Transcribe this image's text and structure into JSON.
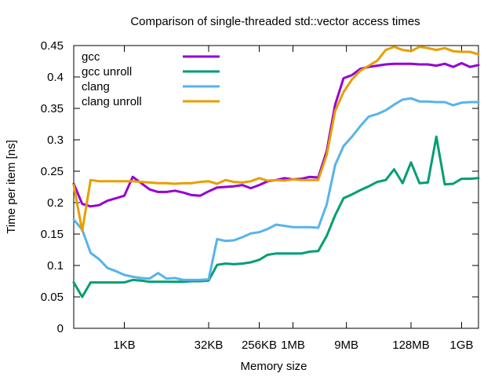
{
  "chart_data": {
    "type": "line",
    "title": "Comparison of single-threaded std::vector access times",
    "xlabel": "Memory size",
    "ylabel": "Time per item [ns]",
    "x_scale": "log2",
    "x_unit": "bytes",
    "xlim": [
      128,
      2147483648
    ],
    "ylim": [
      0,
      0.45
    ],
    "x_ticks": [
      {
        "label": "1KB",
        "value": 1024
      },
      {
        "label": "32KB",
        "value": 32768
      },
      {
        "label": "256KB",
        "value": 262144
      },
      {
        "label": "1MB",
        "value": 1048576
      },
      {
        "label": "9MB",
        "value": 9437184
      },
      {
        "label": "128MB",
        "value": 134217728
      },
      {
        "label": "1GB",
        "value": 1073741824
      }
    ],
    "y_ticks": [
      "0",
      "0.05",
      "0.1",
      "0.15",
      "0.2",
      "0.25",
      "0.3",
      "0.35",
      "0.4",
      "0.45"
    ],
    "y_tick_values": [
      0,
      0.05,
      0.1,
      0.15,
      0.2,
      0.25,
      0.3,
      0.35,
      0.4,
      0.45
    ],
    "grid": false,
    "legend_position": "top-left",
    "x_kb": [
      0.125,
      0.177,
      0.25,
      0.354,
      0.5,
      0.707,
      1,
      1.41,
      2,
      2.83,
      4,
      5.66,
      8,
      11.3,
      16,
      22.6,
      32,
      45.3,
      64,
      90.5,
      128,
      181,
      256,
      362,
      512,
      724,
      1024,
      1448,
      2048,
      2896,
      4096,
      5793,
      8192,
      11585,
      16384,
      23170,
      32768,
      46341,
      65536,
      92682,
      131072,
      185364,
      262144,
      370728,
      524288,
      741455,
      1048576,
      1482910,
      2097152
    ],
    "series": [
      {
        "name": "gcc",
        "color": "#9400d3",
        "values": [
          0.23,
          0.198,
          0.194,
          0.196,
          0.203,
          0.207,
          0.211,
          0.241,
          0.231,
          0.221,
          0.217,
          0.217,
          0.219,
          0.216,
          0.212,
          0.211,
          0.218,
          0.224,
          0.225,
          0.226,
          0.228,
          0.223,
          0.228,
          0.234,
          0.236,
          0.239,
          0.237,
          0.238,
          0.241,
          0.24,
          0.282,
          0.356,
          0.398,
          0.403,
          0.413,
          0.416,
          0.418,
          0.42,
          0.421,
          0.421,
          0.421,
          0.42,
          0.42,
          0.418,
          0.421,
          0.416,
          0.422,
          0.416,
          0.419
        ]
      },
      {
        "name": "gcc unroll",
        "color": "#009e73",
        "values": [
          0.073,
          0.05,
          0.073,
          0.073,
          0.073,
          0.073,
          0.073,
          0.077,
          0.076,
          0.074,
          0.074,
          0.074,
          0.074,
          0.074,
          0.075,
          0.075,
          0.076,
          0.101,
          0.103,
          0.102,
          0.103,
          0.105,
          0.109,
          0.117,
          0.119,
          0.119,
          0.119,
          0.119,
          0.122,
          0.123,
          0.147,
          0.18,
          0.207,
          0.213,
          0.22,
          0.226,
          0.233,
          0.236,
          0.253,
          0.231,
          0.264,
          0.231,
          0.232,
          0.305,
          0.229,
          0.23,
          0.238,
          0.238,
          0.239
        ]
      },
      {
        "name": "clang",
        "color": "#56b4e9",
        "values": [
          0.173,
          0.157,
          0.12,
          0.11,
          0.096,
          0.091,
          0.085,
          0.082,
          0.08,
          0.079,
          0.088,
          0.079,
          0.08,
          0.077,
          0.077,
          0.077,
          0.078,
          0.142,
          0.139,
          0.14,
          0.145,
          0.151,
          0.153,
          0.158,
          0.165,
          0.163,
          0.161,
          0.161,
          0.161,
          0.16,
          0.197,
          0.26,
          0.29,
          0.305,
          0.322,
          0.337,
          0.341,
          0.347,
          0.356,
          0.364,
          0.366,
          0.361,
          0.361,
          0.36,
          0.36,
          0.355,
          0.359,
          0.36,
          0.36
        ]
      },
      {
        "name": "clang unroll",
        "color": "#e69f00",
        "values": [
          0.228,
          0.155,
          0.236,
          0.234,
          0.234,
          0.234,
          0.234,
          0.234,
          0.233,
          0.232,
          0.231,
          0.231,
          0.23,
          0.231,
          0.231,
          0.233,
          0.234,
          0.23,
          0.236,
          0.233,
          0.232,
          0.234,
          0.239,
          0.235,
          0.236,
          0.235,
          0.237,
          0.236,
          0.236,
          0.236,
          0.276,
          0.346,
          0.376,
          0.396,
          0.41,
          0.418,
          0.426,
          0.443,
          0.448,
          0.443,
          0.441,
          0.448,
          0.446,
          0.443,
          0.446,
          0.441,
          0.44,
          0.44,
          0.436
        ]
      }
    ]
  }
}
